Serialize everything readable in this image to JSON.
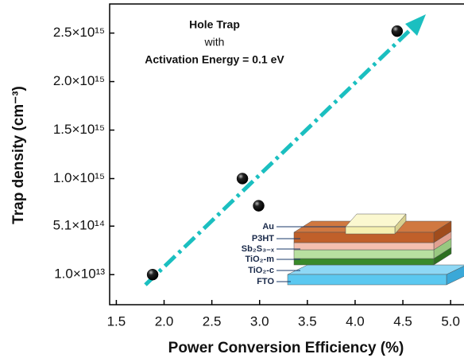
{
  "chart_data": {
    "type": "scatter",
    "x_label": "Power Conversion Efficiency (%)",
    "y_label": "Trap density (cm⁻³)",
    "x": [
      1.88,
      2.82,
      2.99,
      4.44
    ],
    "values": [
      10000000000000.0,
      1000000000000000.0,
      720000000000000.0,
      2520000000000000.0
    ],
    "color": "#000000",
    "xlim": [
      1.43,
      5.14
    ],
    "ylim": [
      -300000000000000.0,
      2800000000000000.0
    ],
    "xticks": [
      1.5,
      {
        "value": 2,
        "label": "2.0"
      },
      2.5,
      {
        "value": 3,
        "label": "3.0"
      },
      3.5,
      {
        "value": 4,
        "label": "4.0"
      },
      4.5,
      {
        "value": 5,
        "label": "5.0"
      }
    ],
    "yticks": [
      {
        "value": 10000000000000.0,
        "label": "1.0×10¹³"
      },
      {
        "value": 510000000000000.0,
        "label": "5.1×10¹⁴"
      },
      {
        "value": 1000000000000000.0,
        "label": "1.0×10¹⁵"
      },
      {
        "value": 1500000000000000.0,
        "label": "1.5×10¹⁵"
      },
      {
        "value": 2000000000000000.0,
        "label": "2.0×10¹⁵"
      },
      {
        "value": 2500000000000000.0,
        "label": "2.5×10¹⁵"
      }
    ],
    "grid": false,
    "annotations": [
      "Hole Trap",
      "with",
      "Activation Energy = 0.1 eV"
    ],
    "inset_labels": [
      "Au",
      "P3HT",
      "Sb₂S₃₋ₓ",
      "TiO₂-m",
      "TiO₂-c",
      "FTO"
    ]
  }
}
